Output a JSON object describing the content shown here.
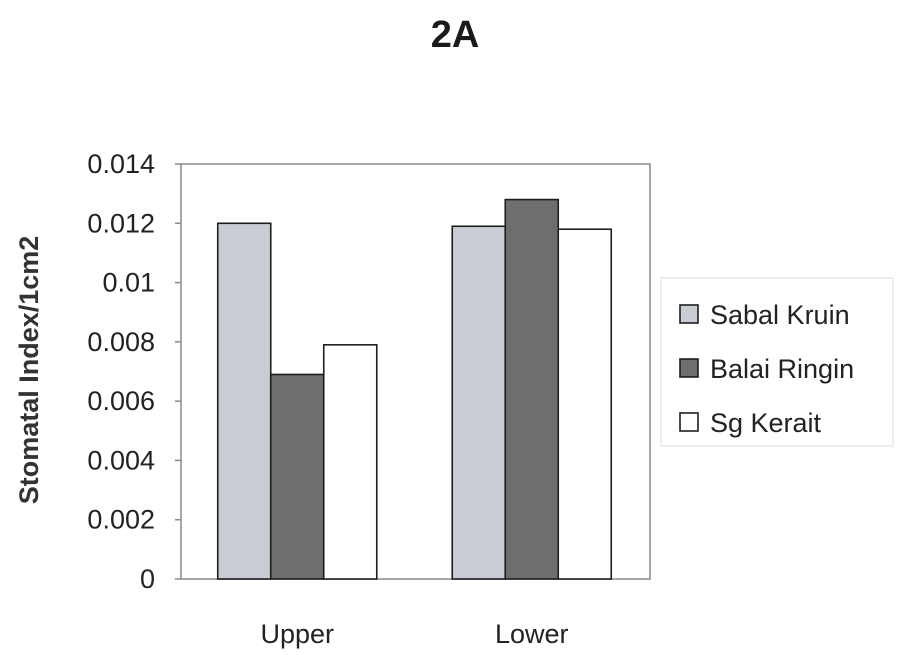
{
  "chart_data": {
    "type": "bar",
    "title": "2A",
    "xlabel": "",
    "ylabel": "Stomatal Index/1cm2",
    "categories": [
      "Upper",
      "Lower"
    ],
    "series": [
      {
        "name": "Sabal Kruin",
        "values": [
          0.012,
          0.0119
        ],
        "color": "#c9ccd3"
      },
      {
        "name": "Balai Ringin",
        "values": [
          0.0069,
          0.0128
        ],
        "color": "#6e6e6e"
      },
      {
        "name": "Sg Kerait",
        "values": [
          0.0079,
          0.0118
        ],
        "color": "#ffffff"
      }
    ],
    "ylim": [
      0,
      0.014
    ],
    "yticks": [
      "0",
      "0.002",
      "0.004",
      "0.006",
      "0.008",
      "0.01",
      "0.012",
      "0.014"
    ],
    "ytick_values": [
      0,
      0.002,
      0.004,
      0.006,
      0.008,
      0.01,
      0.012,
      0.014
    ],
    "grid": false,
    "legend_position": "right"
  }
}
